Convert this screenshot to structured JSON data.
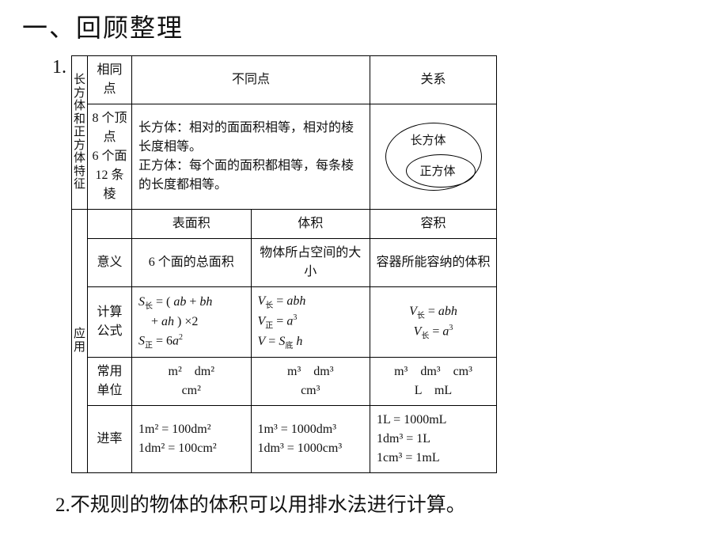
{
  "heading": "一、回顾整理",
  "item1_num": "1.",
  "item2": "2.不规则的物体的体积可以用排水法进行计算。",
  "table": {
    "side_label_top": "长方体和正方体特征",
    "side_label_bottom": "应用",
    "headers": {
      "shared": "相同点",
      "diff": "不同点",
      "relation": "关系"
    },
    "row_features": {
      "shared": "8 个顶点\n6 个面\n12 条棱",
      "diff": "长方体：相对的面面积相等，相对的棱长度相等。\n正方体：每个面的面积都相等，每条棱的长度都相等。",
      "outer_oval": "长方体",
      "inner_oval": "正方体"
    },
    "sub_headers": {
      "sa": "表面积",
      "vol": "体积",
      "cap": "容积"
    },
    "row_meaning": {
      "label": "意义",
      "sa": "6 个面的总面积",
      "vol": "物体所占空间的大小",
      "cap": "容器所能容纳的体积"
    },
    "row_formula": {
      "label": "计算公式"
    },
    "row_units": {
      "label": "常用单位",
      "sa": "m²　dm²\ncm²",
      "vol": "m³　dm³\ncm³",
      "cap": "m³　dm³　cm³\nL　mL"
    },
    "row_rate": {
      "label": "进率",
      "sa": "1m² = 100dm²\n1dm² = 100cm²",
      "vol": "1m³ = 1000dm³\n1dm³ = 1000cm³",
      "cap": "1L = 1000mL\n1dm³ = 1L\n1cm³ = 1mL"
    }
  },
  "colors": {
    "text": "#111111",
    "border": "#000000",
    "bg": "#ffffff"
  }
}
